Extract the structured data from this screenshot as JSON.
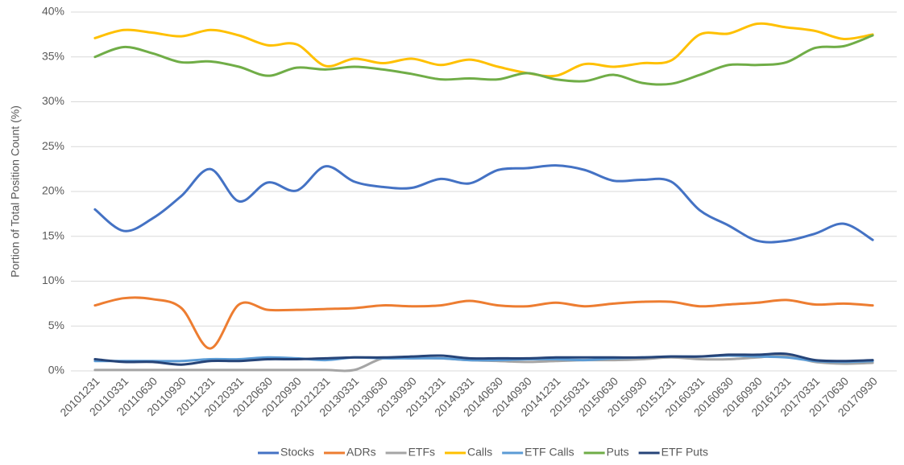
{
  "chart_data": {
    "type": "line",
    "y_axis_label": "Portion of Total Position Count (%)",
    "categories": [
      "20101231",
      "20110331",
      "20110630",
      "20110930",
      "20111231",
      "20120331",
      "20120630",
      "20120930",
      "20121231",
      "20130331",
      "20130630",
      "20130930",
      "20131231",
      "20140331",
      "20140630",
      "20140930",
      "20141231",
      "20150331",
      "20150630",
      "20150930",
      "20151231",
      "20160331",
      "20160630",
      "20160930",
      "20161231",
      "20170331",
      "20170630",
      "20170930"
    ],
    "series": [
      {
        "name": "Stocks",
        "color": "#4472c4",
        "values": [
          18.0,
          15.6,
          17.0,
          19.5,
          22.5,
          18.9,
          21.0,
          20.1,
          22.8,
          21.1,
          20.5,
          20.4,
          21.4,
          20.9,
          22.4,
          22.6,
          22.9,
          22.4,
          21.2,
          21.3,
          21.1,
          17.9,
          16.2,
          14.5,
          14.5,
          15.3,
          16.4,
          14.6
        ]
      },
      {
        "name": "ADRs",
        "color": "#ed7d31",
        "values": [
          7.3,
          8.1,
          8.0,
          7.0,
          2.5,
          7.4,
          6.8,
          6.8,
          6.9,
          7.0,
          7.3,
          7.2,
          7.3,
          7.8,
          7.3,
          7.2,
          7.6,
          7.2,
          7.5,
          7.7,
          7.7,
          7.2,
          7.4,
          7.6,
          7.9,
          7.4,
          7.5,
          7.3
        ]
      },
      {
        "name": "ETFs",
        "color": "#a5a5a5",
        "values": [
          0.1,
          0.1,
          0.1,
          0.1,
          0.1,
          0.1,
          0.1,
          0.1,
          0.1,
          0.1,
          1.4,
          1.4,
          1.4,
          1.2,
          1.1,
          1.0,
          1.1,
          1.2,
          1.2,
          1.3,
          1.5,
          1.3,
          1.3,
          1.5,
          1.7,
          1.0,
          0.8,
          0.9
        ]
      },
      {
        "name": "Calls",
        "color": "#ffc000",
        "values": [
          37.1,
          38.0,
          37.7,
          37.3,
          38.0,
          37.4,
          36.3,
          36.4,
          34.0,
          34.8,
          34.3,
          34.8,
          34.1,
          34.7,
          33.9,
          33.2,
          32.9,
          34.2,
          33.9,
          34.3,
          34.6,
          37.5,
          37.6,
          38.7,
          38.3,
          37.9,
          37.0,
          37.5
        ]
      },
      {
        "name": "ETF Calls",
        "color": "#5b9bd5",
        "values": [
          1.1,
          1.1,
          1.1,
          1.1,
          1.3,
          1.3,
          1.5,
          1.4,
          1.2,
          1.5,
          1.4,
          1.4,
          1.4,
          1.2,
          1.2,
          1.3,
          1.3,
          1.2,
          1.4,
          1.5,
          1.6,
          1.6,
          1.7,
          1.6,
          1.5,
          1.1,
          1.0,
          1.1
        ]
      },
      {
        "name": "Puts",
        "color": "#70ad47",
        "values": [
          35.0,
          36.1,
          35.4,
          34.4,
          34.5,
          33.9,
          32.9,
          33.8,
          33.6,
          33.9,
          33.6,
          33.1,
          32.5,
          32.6,
          32.5,
          33.2,
          32.5,
          32.3,
          33.0,
          32.1,
          32.0,
          33.0,
          34.1,
          34.1,
          34.4,
          36.0,
          36.2,
          37.4
        ]
      },
      {
        "name": "ETF Puts",
        "color": "#264478",
        "values": [
          1.3,
          1.0,
          1.0,
          0.7,
          1.1,
          1.1,
          1.3,
          1.3,
          1.4,
          1.5,
          1.5,
          1.6,
          1.7,
          1.4,
          1.4,
          1.4,
          1.5,
          1.5,
          1.5,
          1.5,
          1.6,
          1.6,
          1.8,
          1.8,
          1.9,
          1.2,
          1.1,
          1.2
        ]
      }
    ],
    "ylim": [
      0,
      40
    ],
    "yticks": [
      {
        "value": 0,
        "label": "0%"
      },
      {
        "value": 5,
        "label": "5%"
      },
      {
        "value": 10,
        "label": "10%"
      },
      {
        "value": 15,
        "label": "15%"
      },
      {
        "value": 20,
        "label": "20%"
      },
      {
        "value": 25,
        "label": "25%"
      },
      {
        "value": 30,
        "label": "30%"
      },
      {
        "value": 35,
        "label": "35%"
      },
      {
        "value": 40,
        "label": "40%"
      }
    ],
    "grid": true,
    "legend": "bottom"
  }
}
